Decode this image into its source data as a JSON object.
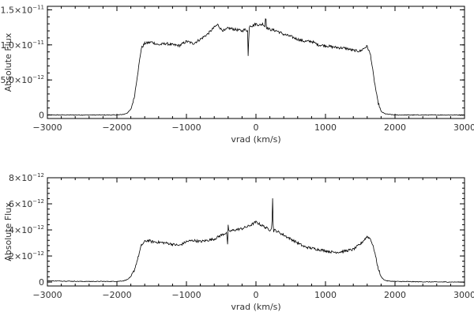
{
  "chart_data": [
    {
      "type": "line",
      "xlabel": "vrad (km/s)",
      "ylabel": "Absolute Flux",
      "xlim": [
        -3000,
        3000
      ],
      "ylim": [
        -5e-13,
        1.55e-11
      ],
      "x_ticks": [
        {
          "value": -3000,
          "label": "−3000"
        },
        {
          "value": -2000,
          "label": "−2000"
        },
        {
          "value": -1000,
          "label": "−1000"
        },
        {
          "value": 0,
          "label": "0"
        },
        {
          "value": 1000,
          "label": "1000"
        },
        {
          "value": 2000,
          "label": "2000"
        },
        {
          "value": 3000,
          "label": "3000"
        }
      ],
      "y_ticks": [
        {
          "value": 0,
          "mantissa": "0",
          "exponent": ""
        },
        {
          "value": 5e-12,
          "mantissa": "5.0×10",
          "exponent": "−12"
        },
        {
          "value": 1e-11,
          "mantissa": "1.0×10",
          "exponent": "−11"
        },
        {
          "value": 1.5e-11,
          "mantissa": "1.5×10",
          "exponent": "−11"
        }
      ],
      "grid": false,
      "series": [
        {
          "x": [
            -3000,
            -2500,
            -2000,
            -1900,
            -1850,
            -1800,
            -1750,
            -1700,
            -1650,
            -1600,
            -1550,
            -1500,
            -1400,
            -1300,
            -1200,
            -1100,
            -1000,
            -900,
            -800,
            -700,
            -600,
            -550,
            -500,
            -450,
            -400,
            -300,
            -200,
            -150,
            -120,
            -110,
            -100,
            -90,
            -50,
            0,
            50,
            100,
            130,
            140,
            150,
            200,
            300,
            400,
            500,
            600,
            700,
            800,
            900,
            1000,
            1100,
            1200,
            1300,
            1400,
            1500,
            1550,
            1600,
            1650,
            1700,
            1750,
            1800,
            1850,
            1900,
            2000,
            2500,
            3000
          ],
          "y": [
            0,
            0,
            0,
            1e-13,
            3e-13,
            8e-13,
            2.5e-12,
            6e-12,
            9.5e-12,
            1.02e-11,
            1.03e-11,
            1.04e-11,
            1e-11,
            1.02e-11,
            1e-11,
            9.9e-12,
            1.05e-11,
            1.02e-11,
            1.08e-11,
            1.15e-11,
            1.25e-11,
            1.29e-11,
            1.22e-11,
            1.2e-11,
            1.24e-11,
            1.22e-11,
            1.2e-11,
            1.22e-11,
            1.2e-11,
            7.5e-12,
            1.25e-11,
            1.28e-11,
            1.27e-11,
            1.3e-11,
            1.28e-11,
            1.3e-11,
            1.26e-11,
            1.45e-11,
            1.25e-11,
            1.22e-11,
            1.2e-11,
            1.15e-11,
            1.12e-11,
            1.08e-11,
            1.05e-11,
            1.05e-11,
            1e-11,
            9.9e-12,
            9.7e-12,
            9.6e-12,
            9.5e-12,
            9.2e-12,
            9.1e-12,
            9.5e-12,
            9.8e-12,
            8.5e-12,
            5e-12,
            2e-12,
            5e-13,
            2e-13,
            1e-13,
            0,
            0,
            0
          ]
        }
      ]
    },
    {
      "type": "line",
      "xlabel": "vrad (km/s)",
      "ylabel": "Absolute Flux",
      "xlim": [
        -3000,
        3000
      ],
      "ylim": [
        -3e-13,
        8e-12
      ],
      "x_ticks": [
        {
          "value": -3000,
          "label": "−3000"
        },
        {
          "value": -2000,
          "label": "−2000"
        },
        {
          "value": -1000,
          "label": "−1000"
        },
        {
          "value": 0,
          "label": "0"
        },
        {
          "value": 1000,
          "label": "1000"
        },
        {
          "value": 2000,
          "label": "2000"
        },
        {
          "value": 3000,
          "label": "3000"
        }
      ],
      "y_ticks": [
        {
          "value": 0,
          "mantissa": "0",
          "exponent": ""
        },
        {
          "value": 2e-12,
          "mantissa": "2×10",
          "exponent": "−12"
        },
        {
          "value": 4e-12,
          "mantissa": "4×10",
          "exponent": "−12"
        },
        {
          "value": 6e-12,
          "mantissa": "6×10",
          "exponent": "−12"
        },
        {
          "value": 8e-12,
          "mantissa": "8×10",
          "exponent": "−12"
        }
      ],
      "grid": false,
      "series": [
        {
          "x": [
            -3000,
            -2500,
            -2000,
            -1900,
            -1850,
            -1800,
            -1750,
            -1700,
            -1650,
            -1600,
            -1550,
            -1500,
            -1400,
            -1300,
            -1200,
            -1100,
            -1000,
            -900,
            -800,
            -700,
            -600,
            -500,
            -420,
            -410,
            -400,
            -390,
            -380,
            -300,
            -200,
            -100,
            0,
            100,
            200,
            230,
            240,
            250,
            260,
            300,
            400,
            500,
            600,
            700,
            800,
            900,
            1000,
            1100,
            1200,
            1300,
            1400,
            1500,
            1550,
            1600,
            1650,
            1700,
            1750,
            1800,
            1850,
            1900,
            2000,
            2500,
            3000
          ],
          "y": [
            1e-13,
            5e-14,
            5e-14,
            1e-13,
            2e-13,
            4e-13,
            9e-13,
            1.8e-12,
            2.8e-12,
            3.1e-12,
            3.2e-12,
            3.1e-12,
            3.05e-12,
            3e-12,
            2.9e-12,
            2.8e-12,
            3.1e-12,
            3.2e-12,
            3.1e-12,
            3.2e-12,
            3.3e-12,
            3.6e-12,
            3.8e-12,
            2.6e-12,
            4.3e-12,
            3.8e-12,
            3.9e-12,
            4e-12,
            4.1e-12,
            4.3e-12,
            4.6e-12,
            4.3e-12,
            4e-12,
            4.2e-12,
            6.5e-12,
            3.8e-12,
            4e-12,
            3.9e-12,
            3.6e-12,
            3.3e-12,
            3e-12,
            2.7e-12,
            2.6e-12,
            2.5e-12,
            2.4e-12,
            2.3e-12,
            2.3e-12,
            2.4e-12,
            2.5e-12,
            2.9e-12,
            3.2e-12,
            3.5e-12,
            3.3e-12,
            2.5e-12,
            1.2e-12,
            4e-13,
            1.5e-13,
            8e-14,
            5e-14,
            1e-14,
            0
          ]
        }
      ]
    }
  ]
}
